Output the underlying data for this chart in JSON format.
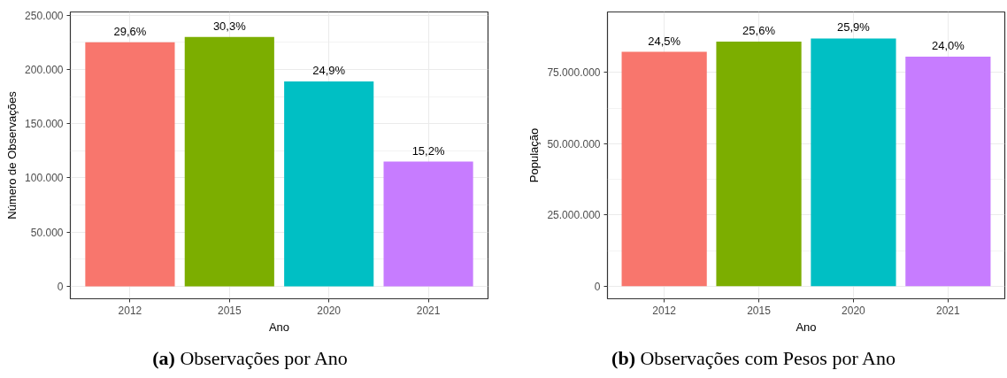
{
  "chart_data": [
    {
      "type": "bar",
      "title": "(a) Observações por Ano",
      "xlabel": "Ano",
      "ylabel": "Número de Observações",
      "categories": [
        "2012",
        "2015",
        "2020",
        "2021"
      ],
      "values": [
        225000,
        230000,
        189000,
        115000
      ],
      "colors": [
        "#f8766d",
        "#7cae00",
        "#00bfc4",
        "#c77cff"
      ],
      "annotations": [
        {
          "text": "29,6%",
          "x": "2012",
          "y": 225000
        },
        {
          "text": "30,3%",
          "x": "2015",
          "y": 230000
        },
        {
          "text": "24,9%",
          "x": "2020",
          "y": 189000
        },
        {
          "text": "15,2%",
          "x": "2021",
          "y": 115000
        }
      ],
      "ylim": [
        -11500,
        253000
      ],
      "yticks": [
        0,
        {
          "value": 50000,
          "label": "50.000"
        },
        {
          "value": 100000,
          "label": "100.000"
        },
        {
          "value": 150000,
          "label": "150.000"
        },
        {
          "value": 200000,
          "label": "200.000"
        },
        {
          "value": 250000,
          "label": "250.000"
        }
      ],
      "grid": true
    },
    {
      "type": "bar",
      "title": "(b) Observações com Pesos por Ano",
      "xlabel": "Ano",
      "ylabel": "População",
      "categories": [
        "2012",
        "2015",
        "2020",
        "2021"
      ],
      "values": [
        82200000,
        85800000,
        86900000,
        80500000
      ],
      "colors": [
        "#f8766d",
        "#7cae00",
        "#00bfc4",
        "#c77cff"
      ],
      "annotations": [
        {
          "text": "24,5%",
          "x": "2012",
          "y": 82200000
        },
        {
          "text": "25,6%",
          "x": "2015",
          "y": 85800000
        },
        {
          "text": "25,9%",
          "x": "2020",
          "y": 86900000
        },
        {
          "text": "24,0%",
          "x": "2021",
          "y": 80500000
        }
      ],
      "ylim": [
        -4400000,
        96200000
      ],
      "yticks": [
        0,
        {
          "value": 25000000,
          "label": "25.000.000"
        },
        {
          "value": 50000000,
          "label": "50.000.000"
        },
        {
          "value": 75000000,
          "label": "75.000.000"
        }
      ],
      "grid": true
    }
  ]
}
